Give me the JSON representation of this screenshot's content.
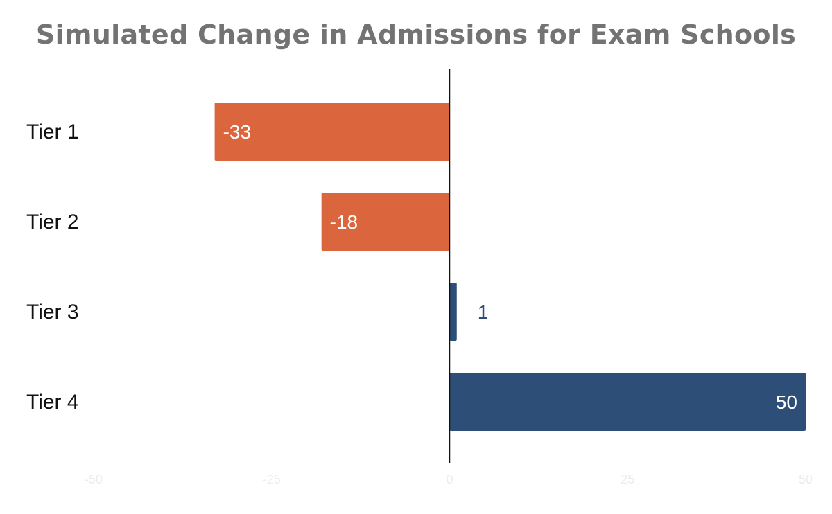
{
  "chart_data": {
    "type": "bar",
    "orientation": "horizontal",
    "title": "Simulated Change in Admissions for Exam Schools",
    "categories": [
      "Tier 1",
      "Tier 2",
      "Tier 3",
      "Tier 4"
    ],
    "values": [
      -33,
      -18,
      1,
      50
    ],
    "value_labels": [
      "-33",
      "-18",
      "1",
      "50"
    ],
    "xlim": [
      -50,
      50
    ],
    "xticks": [
      -50,
      -25,
      0,
      25,
      50
    ],
    "xtick_labels": [
      "-50",
      "-25",
      "0",
      "25",
      "50"
    ],
    "xlabel": "",
    "ylabel": "",
    "grid": false,
    "legend": "none",
    "colors": {
      "negative": "#db663e",
      "positive": "#2d4f77",
      "axis": "#111111",
      "title": "#737373",
      "tick_labels": "#ececec",
      "label_inside": "#ffffff"
    }
  }
}
